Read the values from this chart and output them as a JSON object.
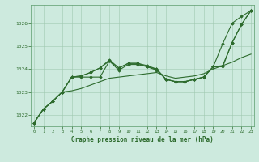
{
  "background_color": "#cdeade",
  "grid_color": "#a0c8b0",
  "line_color": "#2d6b2d",
  "title": "Graphe pression niveau de la mer (hPa)",
  "ylim": [
    1021.5,
    1026.8
  ],
  "xlim": [
    -0.3,
    23.3
  ],
  "yticks": [
    1022,
    1023,
    1024,
    1025,
    1026
  ],
  "xticks": [
    0,
    1,
    2,
    3,
    4,
    5,
    6,
    7,
    8,
    9,
    10,
    11,
    12,
    13,
    14,
    15,
    16,
    17,
    18,
    19,
    20,
    21,
    22,
    23
  ],
  "series_with_markers": [
    [
      1021.65,
      1022.25,
      1022.6,
      1023.0,
      1023.65,
      1023.7,
      1023.85,
      1024.05,
      1024.35,
      1024.05,
      1024.25,
      1024.25,
      1024.15,
      1024.0,
      1023.55,
      1023.45,
      1023.45,
      1023.55,
      1023.65,
      1024.1,
      1025.1,
      1026.0,
      1026.3,
      1026.55
    ],
    [
      1021.65,
      1022.25,
      1022.6,
      1023.0,
      1023.65,
      1023.7,
      1023.85,
      1024.05,
      1024.4,
      1024.05,
      1024.25,
      1024.25,
      1024.1,
      1023.95,
      1023.55,
      1023.45,
      1023.45,
      1023.55,
      1023.65,
      1024.1,
      1024.1,
      1025.15,
      1025.95,
      1026.55
    ],
    [
      1021.65,
      1022.25,
      1022.6,
      1023.0,
      1023.65,
      1023.65,
      1023.65,
      1023.65,
      1024.35,
      1023.95,
      1024.2,
      1024.2,
      1024.1,
      1024.0,
      1023.55,
      1023.45,
      1023.45,
      1023.55,
      1023.65,
      1024.1,
      1024.15,
      1025.15,
      1025.95,
      1026.55
    ]
  ],
  "series_smooth": [
    [
      1021.65,
      1022.25,
      1022.6,
      1023.0,
      1023.05,
      1023.15,
      1023.3,
      1023.45,
      1023.6,
      1023.65,
      1023.7,
      1023.75,
      1023.8,
      1023.85,
      1023.7,
      1023.6,
      1023.65,
      1023.7,
      1023.8,
      1024.0,
      1024.15,
      1024.3,
      1024.5,
      1024.65
    ]
  ]
}
